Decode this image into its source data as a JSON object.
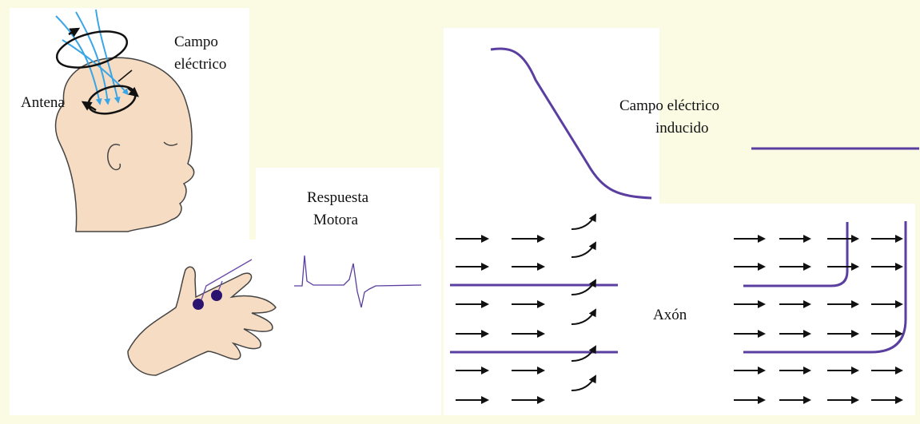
{
  "labels": {
    "field": [
      "Campo",
      "eléctrico"
    ],
    "antenna": "Antena",
    "response": [
      "Respuesta",
      "Motora"
    ],
    "induced": [
      "Campo eléctrico",
      "inducido"
    ],
    "axon": "Axón"
  }
}
